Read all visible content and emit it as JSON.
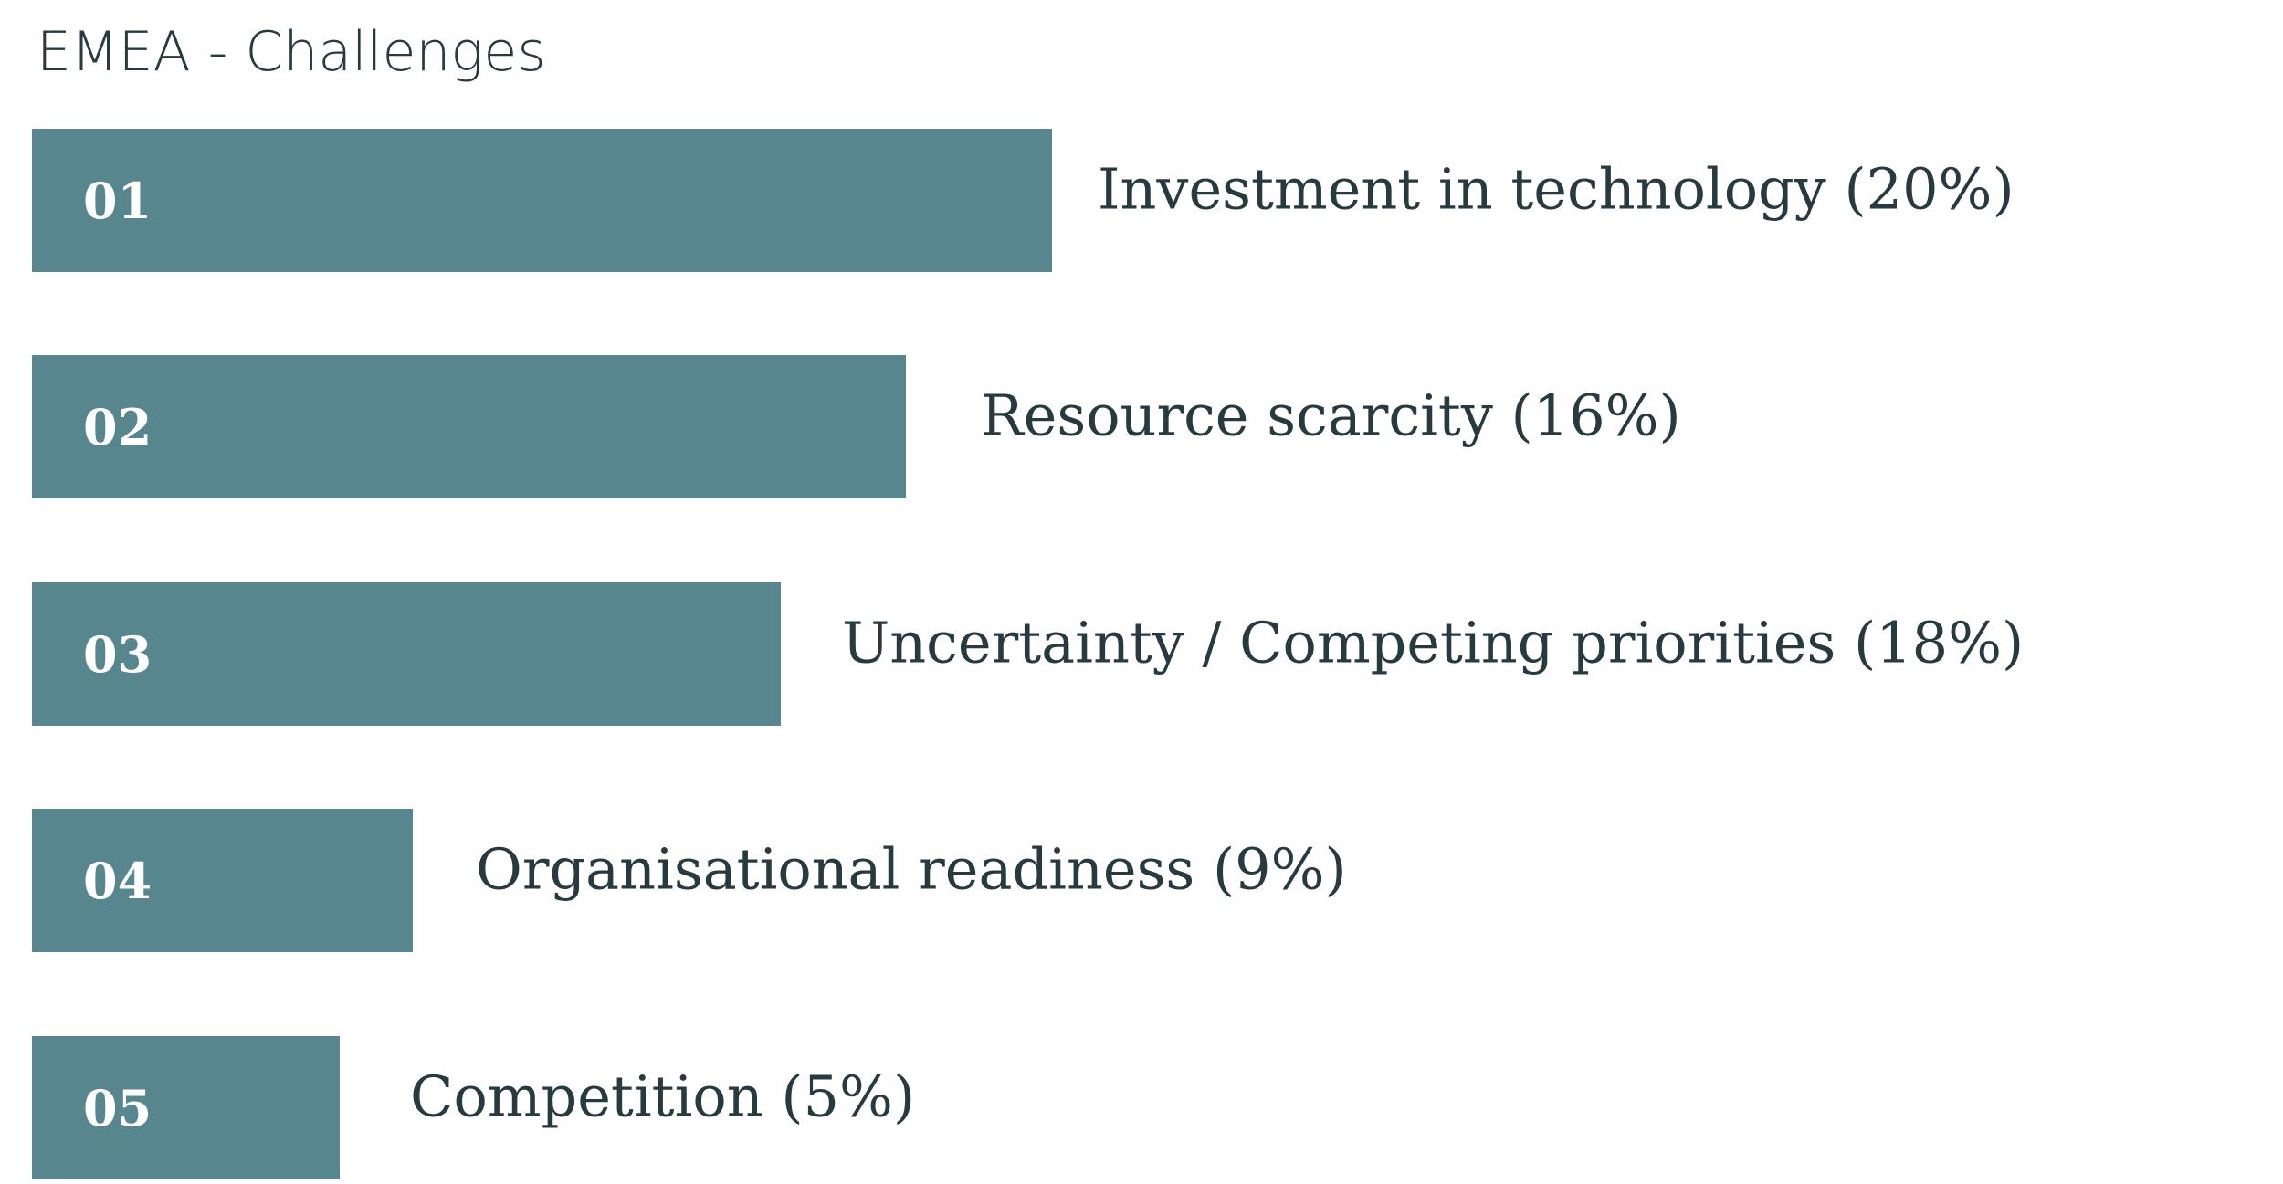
{
  "header": {
    "title": "EMEA - Challenges"
  },
  "items": [
    {
      "number": "01",
      "label": "Investment in technology (20%)"
    },
    {
      "number": "02",
      "label": "Resource scarcity (16%)"
    },
    {
      "number": "03",
      "label": "Uncertainty / Competing priorities (18%)"
    },
    {
      "number": "04",
      "label": "Organisational readiness (9%)"
    },
    {
      "number": "05",
      "label": "Competition (5%)"
    }
  ]
}
